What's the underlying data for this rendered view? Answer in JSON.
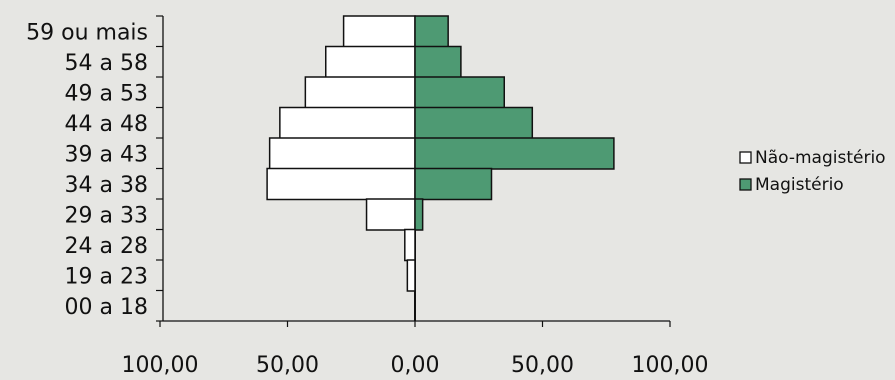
{
  "chart_data": {
    "type": "bar",
    "orientation": "horizontal-diverging",
    "categories": [
      "59 ou mais",
      "54 a 58",
      "49 a 53",
      "44 a 48",
      "39 a 43",
      "34 a 38",
      "29 a 33",
      "24 a 28",
      "19 a 23",
      "00 a 18"
    ],
    "series": [
      {
        "name": "Não-magistério",
        "values": [
          28,
          35,
          43,
          53,
          57,
          58,
          19,
          4,
          3,
          0
        ],
        "color": "#ffffff",
        "side": "left"
      },
      {
        "name": "Magistério",
        "values": [
          13,
          18,
          35,
          46,
          78,
          30,
          3,
          0,
          0,
          0
        ],
        "color": "#4e9a73",
        "side": "right"
      }
    ],
    "x_tick_labels": [
      "100,00",
      "50,00",
      "0,00",
      "50,00",
      "100,00"
    ],
    "xlim": [
      -100,
      100
    ],
    "grid": false,
    "legend_position": "right"
  }
}
